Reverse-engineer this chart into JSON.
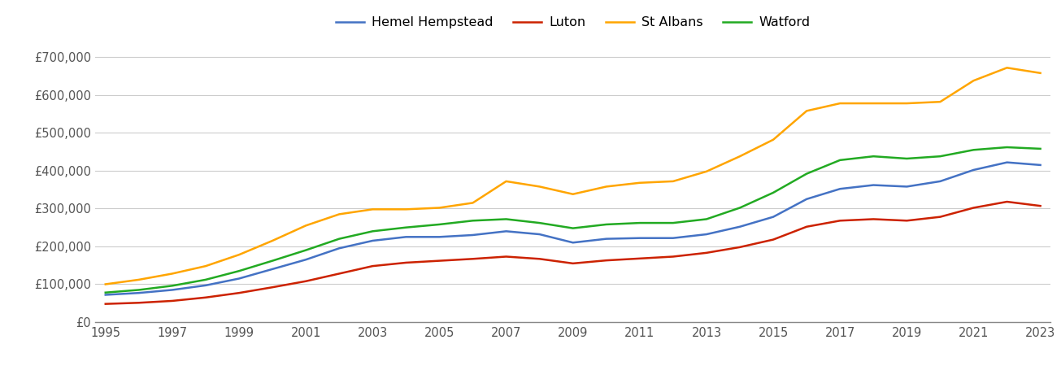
{
  "years": [
    1995,
    1996,
    1997,
    1998,
    1999,
    2000,
    2001,
    2002,
    2003,
    2004,
    2005,
    2006,
    2007,
    2008,
    2009,
    2010,
    2011,
    2012,
    2013,
    2014,
    2015,
    2016,
    2017,
    2018,
    2019,
    2020,
    2021,
    2022,
    2023
  ],
  "hemel_hempstead": [
    72000,
    77000,
    85000,
    97000,
    115000,
    140000,
    165000,
    195000,
    215000,
    225000,
    225000,
    230000,
    240000,
    232000,
    210000,
    220000,
    222000,
    222000,
    232000,
    252000,
    278000,
    325000,
    352000,
    362000,
    358000,
    372000,
    402000,
    422000,
    415000
  ],
  "luton": [
    48000,
    51000,
    56000,
    65000,
    77000,
    92000,
    108000,
    128000,
    148000,
    157000,
    162000,
    167000,
    173000,
    167000,
    155000,
    163000,
    168000,
    173000,
    183000,
    198000,
    218000,
    252000,
    268000,
    272000,
    268000,
    278000,
    302000,
    318000,
    307000
  ],
  "st_albans": [
    100000,
    112000,
    128000,
    148000,
    178000,
    215000,
    255000,
    285000,
    298000,
    298000,
    302000,
    315000,
    372000,
    358000,
    338000,
    358000,
    368000,
    372000,
    398000,
    438000,
    482000,
    558000,
    578000,
    578000,
    578000,
    582000,
    638000,
    672000,
    658000
  ],
  "watford": [
    78000,
    85000,
    96000,
    112000,
    135000,
    162000,
    190000,
    220000,
    240000,
    250000,
    258000,
    268000,
    272000,
    262000,
    248000,
    258000,
    262000,
    262000,
    272000,
    302000,
    342000,
    392000,
    428000,
    438000,
    432000,
    438000,
    455000,
    462000,
    458000
  ],
  "colors": {
    "hemel_hempstead": "#4472C4",
    "luton": "#CC2200",
    "st_albans": "#FFA500",
    "watford": "#22AA22"
  },
  "labels": {
    "hemel_hempstead": "Hemel Hempstead",
    "luton": "Luton",
    "st_albans": "St Albans",
    "watford": "Watford"
  },
  "ylim": [
    0,
    735000
  ],
  "yticks": [
    0,
    100000,
    200000,
    300000,
    400000,
    500000,
    600000,
    700000
  ],
  "ytick_labels": [
    "£0",
    "£100,000",
    "£200,000",
    "£300,000",
    "£400,000",
    "£500,000",
    "£600,000",
    "£700,000"
  ],
  "xtick_start": 1995,
  "xtick_end": 2023,
  "xtick_step": 2,
  "background_color": "#ffffff",
  "grid_color": "#cccccc",
  "line_width": 1.8
}
